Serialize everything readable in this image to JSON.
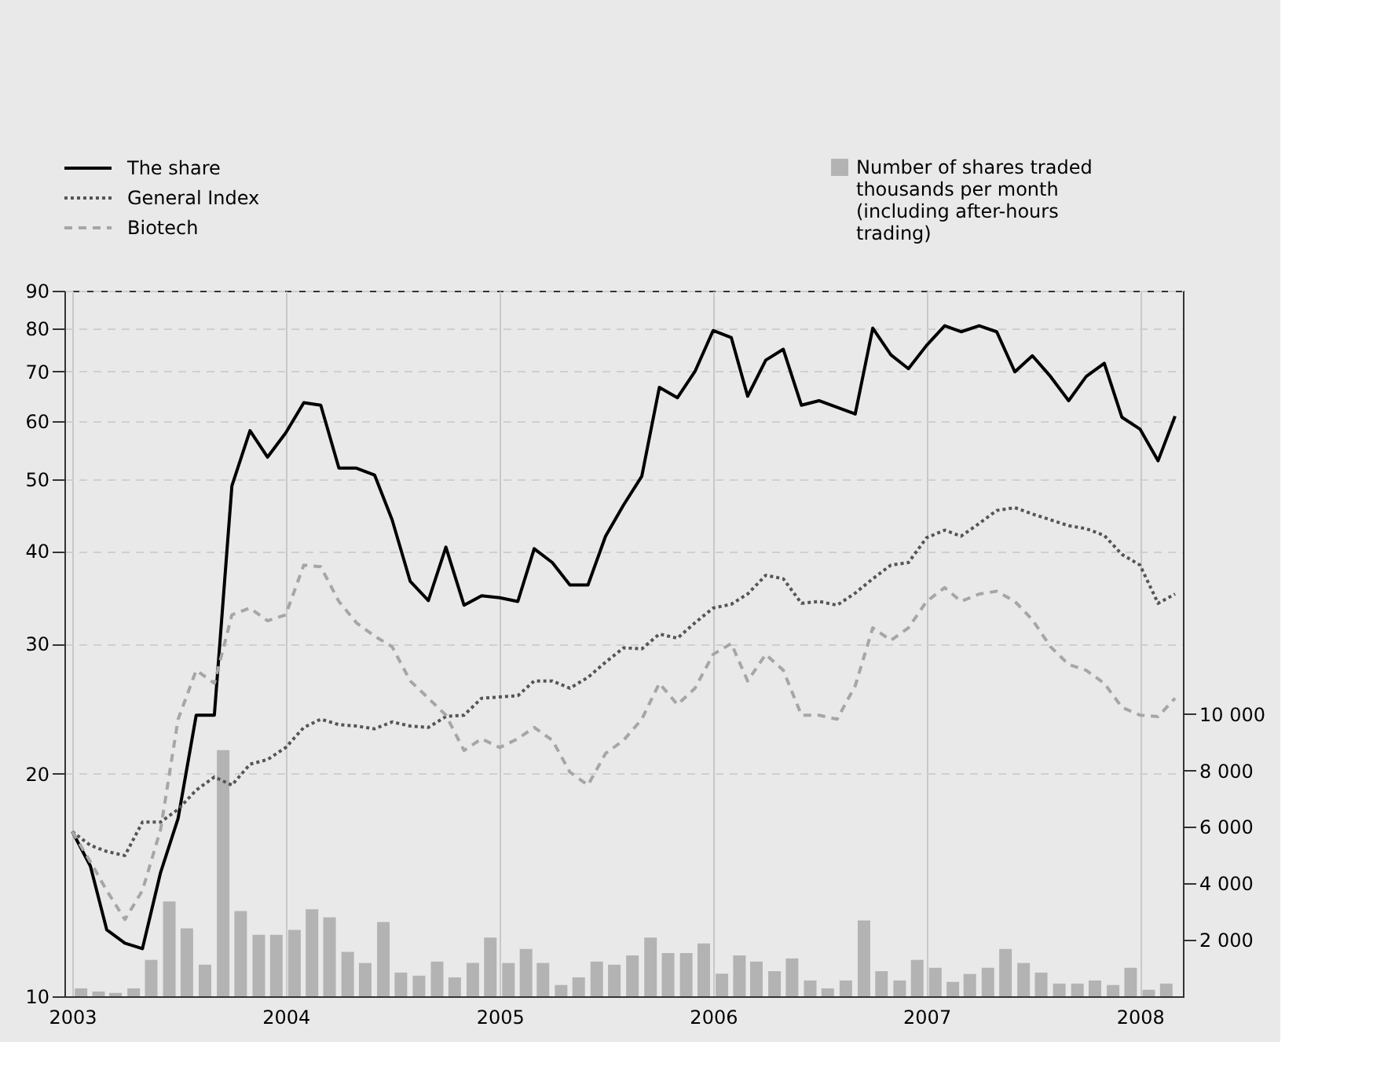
{
  "chart_data": {
    "type": "line",
    "grid": true,
    "legend": "top",
    "log": "y",
    "x": [
      "2003-01",
      "2003-02",
      "2003-03",
      "2003-04",
      "2003-05",
      "2003-06",
      "2003-07",
      "2003-08",
      "2003-09",
      "2003-10",
      "2003-11",
      "2003-12",
      "2004-01",
      "2004-02",
      "2004-03",
      "2004-04",
      "2004-05",
      "2004-06",
      "2004-07",
      "2004-08",
      "2004-09",
      "2004-10",
      "2004-11",
      "2004-12",
      "2005-01",
      "2005-02",
      "2005-03",
      "2005-04",
      "2005-05",
      "2005-06",
      "2005-07",
      "2005-08",
      "2005-09",
      "2005-10",
      "2005-11",
      "2005-12",
      "2006-01",
      "2006-02",
      "2006-03",
      "2006-04",
      "2006-05",
      "2006-06",
      "2006-07",
      "2006-08",
      "2006-09",
      "2006-10",
      "2006-11",
      "2006-12",
      "2007-01",
      "2007-02",
      "2007-03",
      "2007-04",
      "2007-05",
      "2007-06",
      "2007-07",
      "2007-08",
      "2007-09",
      "2007-10",
      "2007-11",
      "2007-12",
      "2008-01",
      "2008-02",
      "2008-03"
    ],
    "xlim": [
      "2003-01",
      "2008-03"
    ],
    "xticks": [
      "2003",
      "2004",
      "2005",
      "2006",
      "2007",
      "2008"
    ],
    "ylim": [
      10,
      90
    ],
    "yticks": [
      10,
      20,
      30,
      40,
      50,
      60,
      70,
      80,
      90
    ],
    "y2lim": [
      0,
      25000
    ],
    "y2ticks": [
      {
        "value": 2000,
        "label": "2 000"
      },
      {
        "value": 4000,
        "label": "4 000"
      },
      {
        "value": 6000,
        "label": "6 000"
      },
      {
        "value": 8000,
        "label": "8 000"
      },
      {
        "value": 10000,
        "label": "10 000"
      }
    ],
    "series": [
      {
        "name": "Number of shares traded thousands per month (including after-hours trading)",
        "type": "bar",
        "axis": "y2",
        "color": "#b3b3b3",
        "x": [
          "2003-01-16",
          "2003-02-15",
          "2003-03-16",
          "2003-04-16",
          "2003-05-16",
          "2003-06-16",
          "2003-07-16",
          "2003-08-16",
          "2003-09-16",
          "2003-10-16",
          "2003-11-16",
          "2003-12-16",
          "2004-01-16",
          "2004-02-15",
          "2004-03-16",
          "2004-04-16",
          "2004-05-16",
          "2004-06-16",
          "2004-07-16",
          "2004-08-16",
          "2004-09-16",
          "2004-10-16",
          "2004-11-16",
          "2004-12-16",
          "2005-01-16",
          "2005-02-15",
          "2005-03-16",
          "2005-04-16",
          "2005-05-16",
          "2005-06-16",
          "2005-07-16",
          "2005-08-16",
          "2005-09-16",
          "2005-10-16",
          "2005-11-16",
          "2005-12-16",
          "2006-01-16",
          "2006-02-15",
          "2006-03-16",
          "2006-04-16",
          "2006-05-16",
          "2006-06-16",
          "2006-07-16",
          "2006-08-16",
          "2006-09-16",
          "2006-10-16",
          "2006-11-16",
          "2006-12-16",
          "2007-01-16",
          "2007-02-15",
          "2007-03-16",
          "2007-04-16",
          "2007-05-16",
          "2007-06-16",
          "2007-07-16",
          "2007-08-16",
          "2007-09-16",
          "2007-10-16",
          "2007-11-16",
          "2007-12-16",
          "2008-01-16",
          "2008-02-15"
        ],
        "values": [
          280,
          170,
          120,
          280,
          1290,
          3360,
          2410,
          1120,
          8720,
          3020,
          2180,
          2180,
          2350,
          3080,
          2800,
          1570,
          1180,
          2630,
          840,
          730,
          1230,
          670,
          1180,
          2080,
          1180,
          1680,
          1180,
          400,
          670,
          1230,
          1120,
          1450,
          2080,
          1530,
          1530,
          1870,
          800,
          1450,
          1230,
          890,
          1340,
          560,
          280,
          560,
          2690,
          890,
          560,
          1290,
          1010,
          510,
          790,
          1010,
          1680,
          1180,
          840,
          450,
          450,
          560,
          400,
          1010,
          230,
          450
        ]
      },
      {
        "name": "The share",
        "line_style": "solid",
        "color": "#000000",
        "values": [
          16.7,
          15.0,
          12.3,
          11.8,
          11.6,
          14.7,
          17.4,
          24.0,
          24.0,
          49.0,
          58.2,
          53.6,
          57.8,
          63.5,
          63.0,
          51.8,
          51.8,
          50.7,
          44.1,
          36.4,
          34.3,
          40.5,
          33.8,
          34.8,
          34.6,
          34.2,
          40.3,
          38.6,
          36.0,
          36.0,
          41.9,
          46.2,
          50.5,
          66.6,
          64.5,
          70.0,
          79.5,
          77.8,
          64.8,
          72.5,
          75.0,
          63.0,
          63.9,
          62.6,
          61.3,
          80.1,
          73.7,
          70.6,
          75.9,
          80.7,
          79.2,
          80.7,
          79.2,
          69.9,
          73.5,
          68.9,
          63.9,
          68.9,
          71.8,
          60.7,
          58.5,
          53.0,
          60.9
        ]
      },
      {
        "name": "General Index",
        "line_style": "dotted",
        "color": "#555555",
        "values": [
          16.7,
          16.0,
          15.7,
          15.5,
          17.2,
          17.2,
          17.9,
          19.0,
          19.8,
          19.3,
          20.6,
          20.9,
          21.7,
          23.1,
          23.7,
          23.3,
          23.2,
          23.0,
          23.5,
          23.2,
          23.1,
          23.9,
          24.0,
          25.3,
          25.4,
          25.5,
          26.7,
          26.7,
          26.1,
          27.0,
          28.3,
          29.6,
          29.5,
          30.9,
          30.5,
          32.0,
          33.5,
          33.9,
          35.0,
          37.1,
          36.7,
          34.0,
          34.2,
          33.8,
          35.1,
          36.7,
          38.3,
          38.6,
          41.7,
          42.7,
          41.9,
          43.6,
          45.4,
          45.8,
          44.9,
          44.1,
          43.3,
          42.9,
          42.0,
          39.6,
          38.3,
          34.0,
          35.0
        ]
      },
      {
        "name": "Biotech",
        "line_style": "dashed",
        "color": "#a6a6a6",
        "values": [
          16.7,
          15.2,
          13.9,
          12.7,
          13.9,
          16.8,
          23.7,
          27.6,
          26.5,
          32.8,
          33.5,
          32.2,
          32.8,
          38.3,
          38.1,
          34.2,
          32.0,
          30.7,
          29.7,
          26.7,
          25.3,
          24.0,
          21.5,
          22.3,
          21.7,
          22.3,
          23.1,
          22.2,
          20.1,
          19.3,
          21.3,
          22.2,
          23.7,
          26.5,
          24.8,
          26.1,
          29.0,
          30.0,
          26.7,
          29.0,
          27.6,
          24.0,
          24.0,
          23.7,
          26.3,
          31.5,
          30.3,
          31.5,
          34.2,
          35.7,
          34.2,
          35.0,
          35.3,
          34.2,
          32.3,
          29.7,
          28.1,
          27.6,
          26.5,
          24.6,
          24.0,
          23.9,
          25.3
        ]
      }
    ]
  }
}
